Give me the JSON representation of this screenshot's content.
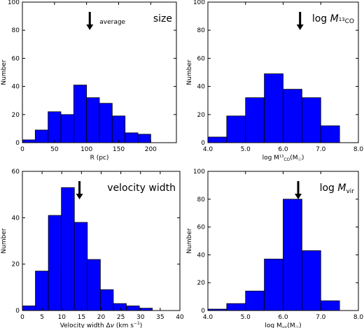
{
  "colors": {
    "bar_fill": "#0000ff",
    "bar_edge": "#000000",
    "arrow": "#000000"
  },
  "chart_data": [
    {
      "type": "bar",
      "panel_label": "size",
      "annotation": "average",
      "arrow_x": 105,
      "xlabel": "R (pc)",
      "ylabel": "Number",
      "xlim": [
        0,
        240
      ],
      "ylim": [
        0,
        100
      ],
      "xticks": [
        0,
        50,
        100,
        150,
        200
      ],
      "xtick_labels": [
        "0",
        "50",
        "100",
        "150",
        "200"
      ],
      "yticks": [
        0,
        20,
        40,
        60,
        80,
        100
      ],
      "ytick_labels": [
        "0",
        "20",
        "40",
        "60",
        "80",
        "100"
      ],
      "bin_edges": [
        0,
        20,
        40,
        60,
        80,
        100,
        120,
        140,
        160,
        180,
        200
      ],
      "values": [
        2,
        9,
        22,
        20,
        41,
        32,
        28,
        19,
        7,
        6
      ]
    },
    {
      "type": "bar",
      "panel_label": "log M",
      "panel_label_sub_sup": "13",
      "panel_label_sub": "CO",
      "arrow_x": 6.45,
      "xlabel_main": "log M",
      "xlabel_sup": "13",
      "xlabel_sub": "CO",
      "xlabel_tail": "(M",
      "xlabel_tail_sub": "☉",
      "xlabel_close": ")",
      "ylabel": "Number",
      "xlim": [
        4.0,
        8.0
      ],
      "ylim": [
        0,
        100
      ],
      "xticks": [
        4.0,
        5.0,
        6.0,
        7.0,
        8.0
      ],
      "xtick_labels": [
        "4.0",
        "5.0",
        "6.0",
        "7.0",
        "8.0"
      ],
      "yticks": [
        0,
        20,
        40,
        60,
        80,
        100
      ],
      "ytick_labels": [
        "0",
        "20",
        "40",
        "60",
        "80",
        "100"
      ],
      "bin_edges": [
        4.0,
        4.5,
        5.0,
        5.5,
        6.0,
        6.5,
        7.0,
        7.5
      ],
      "values": [
        4,
        19,
        32,
        49,
        38,
        32,
        12
      ]
    },
    {
      "type": "bar",
      "panel_label": "velocity width",
      "arrow_x": 14.5,
      "xlabel_main": "Velocity width Δ",
      "xlabel_var": "v",
      "xlabel_tail": " (km s",
      "xlabel_sup": "−1",
      "xlabel_close": ")",
      "ylabel": "Number",
      "xlim": [
        0,
        40
      ],
      "ylim": [
        0,
        60
      ],
      "xticks": [
        0,
        5,
        10,
        15,
        20,
        25,
        30,
        35,
        40
      ],
      "xtick_labels": [
        "0",
        "5",
        "10",
        "15",
        "20",
        "25",
        "30",
        "35",
        "40"
      ],
      "yticks": [
        0,
        20,
        40,
        60
      ],
      "ytick_labels": [
        "0",
        "20",
        "40",
        "60"
      ],
      "bin_edges": [
        0,
        3.3,
        6.6,
        9.9,
        13.2,
        16.5,
        19.8,
        23.1,
        26.4,
        29.7,
        33.0,
        36.3
      ],
      "values": [
        2,
        17,
        41,
        53,
        38,
        22,
        9,
        3,
        2,
        1,
        0
      ]
    },
    {
      "type": "bar",
      "panel_label": "log M",
      "panel_label_sub": "vir",
      "arrow_x": 6.4,
      "xlabel_main": "log M",
      "xlabel_sub": "vir",
      "xlabel_tail": "(M",
      "xlabel_tail_sub": "☉",
      "xlabel_close": ")",
      "ylabel": "Number",
      "xlim": [
        4.0,
        8.0
      ],
      "ylim": [
        0,
        100
      ],
      "xticks": [
        4.0,
        5.0,
        6.0,
        7.0,
        8.0
      ],
      "xtick_labels": [
        "4.0",
        "5.0",
        "6.0",
        "7.0",
        "8.0"
      ],
      "yticks": [
        0,
        20,
        40,
        60,
        80,
        100
      ],
      "ytick_labels": [
        "0",
        "20",
        "40",
        "60",
        "80",
        "100"
      ],
      "bin_edges": [
        4.0,
        4.5,
        5.0,
        5.5,
        6.0,
        6.5,
        7.0,
        7.5
      ],
      "values": [
        1,
        5,
        14,
        37,
        80,
        43,
        7
      ]
    }
  ]
}
